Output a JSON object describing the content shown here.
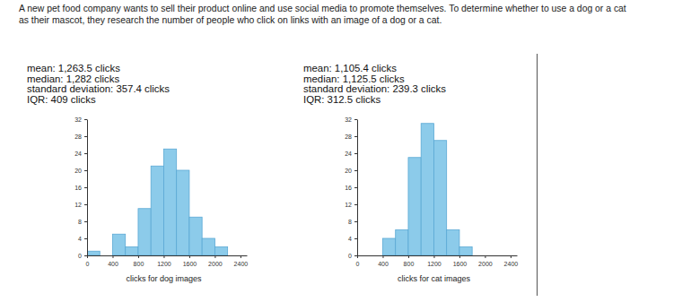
{
  "caption_lines": [
    "A new pet food company wants to sell their product online and use social media to promote themselves. To determine whether to use a dog or a cat",
    "as their mascot, they research the number of people who click on links with an image of a dog or a cat."
  ],
  "chart_data": [
    {
      "type": "histogram",
      "x_label": "clicks for dog images",
      "annotations": [
        "mean: 1,263.5 clicks",
        "median: 1,282 clicks",
        "standard deviation: 357.4 clicks",
        "IQR: 409 clicks"
      ],
      "bins": [
        0,
        200,
        400,
        600,
        800,
        1000,
        1200,
        1400,
        1600,
        1800,
        2000,
        2200,
        2400
      ],
      "values": [
        1,
        0,
        5,
        2,
        11,
        21,
        25,
        20,
        9,
        4,
        2,
        0
      ],
      "color": "#8ccbea",
      "xlim": [
        0,
        2500
      ],
      "xticks": [
        0,
        400,
        800,
        1200,
        1600,
        2000,
        2400
      ],
      "ylim": [
        0,
        32
      ],
      "yticks": [
        0,
        4,
        8,
        12,
        16,
        20,
        24,
        28,
        32
      ]
    },
    {
      "type": "histogram",
      "x_label": "clicks for cat images",
      "annotations": [
        "mean: 1,105.4 clicks",
        "median: 1,125.5 clicks",
        "standard deviation: 239.3 clicks",
        "IQR: 312.5 clicks"
      ],
      "bins": [
        0,
        200,
        400,
        600,
        800,
        1000,
        1200,
        1400,
        1600,
        1800,
        2000,
        2200,
        2400
      ],
      "values": [
        0,
        0,
        4,
        6,
        23,
        31,
        27,
        6,
        2,
        0,
        0,
        0
      ],
      "color": "#8ccbea",
      "xlim": [
        0,
        2500
      ],
      "xticks": [
        0,
        400,
        800,
        1200,
        1600,
        2000,
        2400
      ],
      "ylim": [
        0,
        32
      ],
      "yticks": [
        0,
        4,
        8,
        12,
        16,
        20,
        24,
        28,
        32
      ]
    }
  ]
}
